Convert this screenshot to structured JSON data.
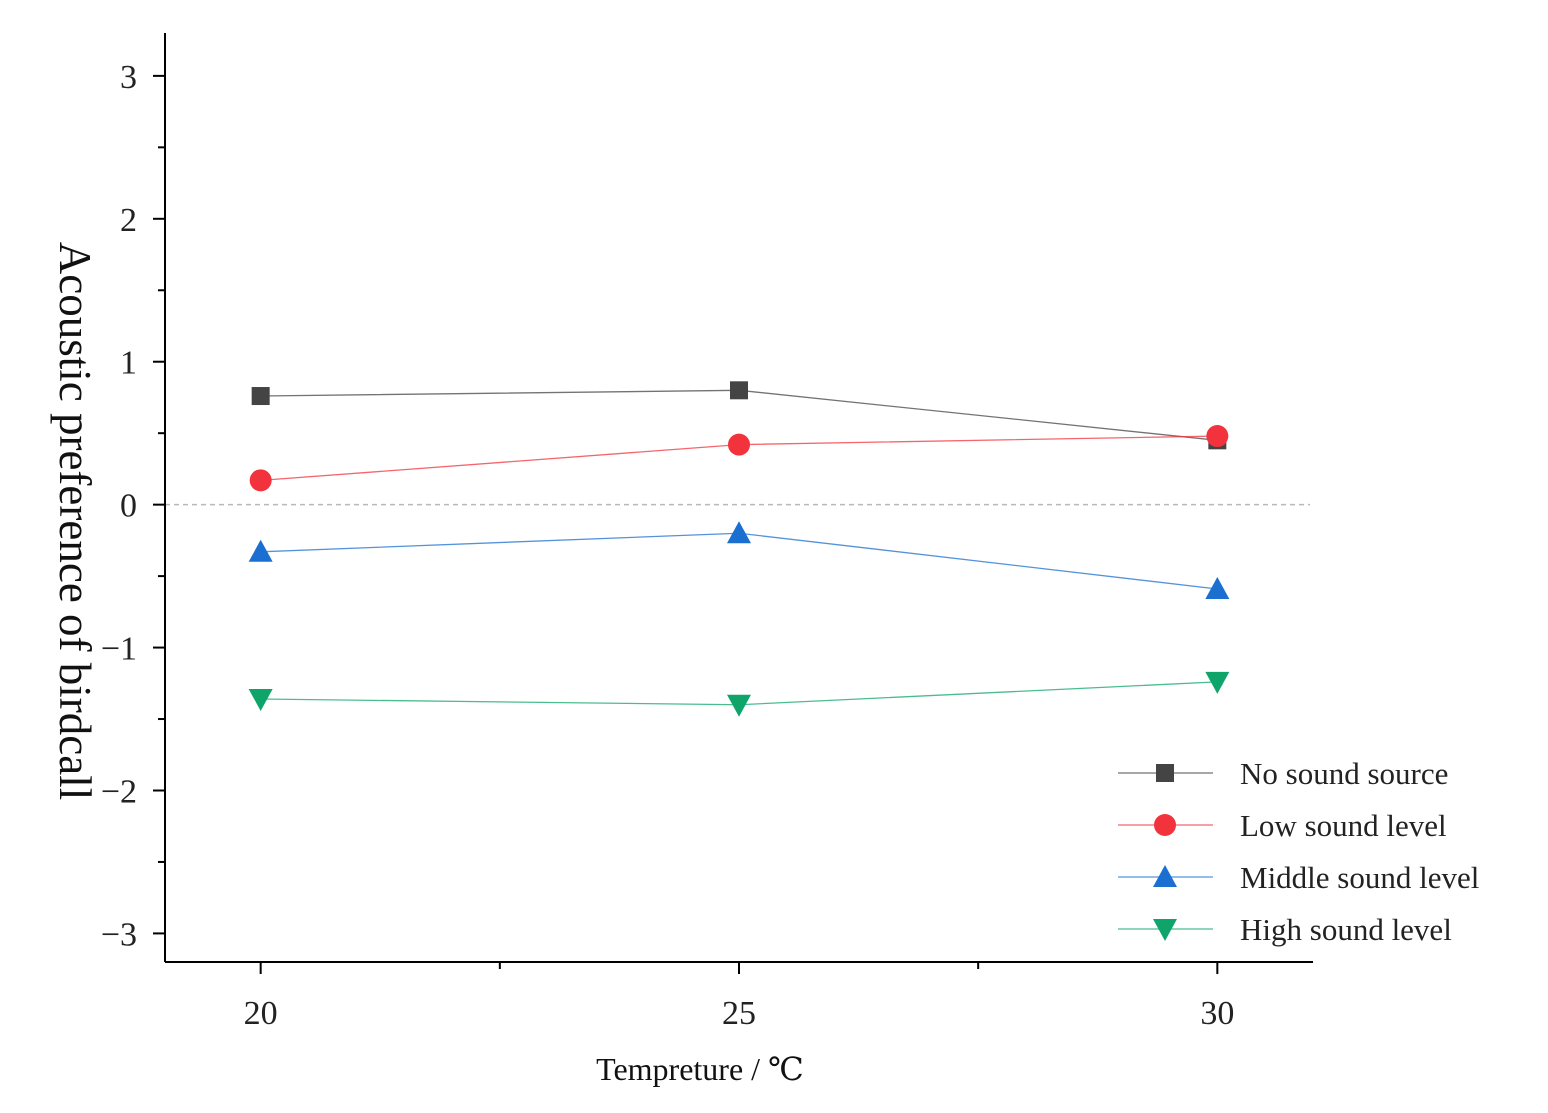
{
  "chart_data": {
    "type": "line",
    "title": "",
    "xlabel": "Tempreture / ℃",
    "ylabel": "Acoustic preference of birdcall",
    "x": [
      20,
      25,
      30
    ],
    "xlim": [
      19,
      31
    ],
    "ylim": [
      -3.2,
      3.3
    ],
    "xticks": [
      "20",
      "25",
      "30"
    ],
    "yticks": [
      "3",
      "2",
      "1",
      "0",
      "−1",
      "−2",
      "−3"
    ],
    "ytick_values": [
      3,
      2,
      1,
      0,
      -1,
      -2,
      -3
    ],
    "reference_line": 0,
    "legend_position": "bottom-right",
    "series": [
      {
        "name": "No sound source",
        "values": [
          0.76,
          0.8,
          0.45
        ],
        "color": "#444444",
        "marker": "square"
      },
      {
        "name": "Low sound level",
        "values": [
          0.17,
          0.42,
          0.48
        ],
        "color": "#f2323c",
        "marker": "circle"
      },
      {
        "name": "Middle sound level",
        "values": [
          -0.33,
          -0.2,
          -0.59
        ],
        "color": "#1a6fd0",
        "marker": "triangle-up"
      },
      {
        "name": "High sound level",
        "values": [
          -1.36,
          -1.4,
          -1.24
        ],
        "color": "#0fa56a",
        "marker": "triangle-down"
      }
    ]
  }
}
